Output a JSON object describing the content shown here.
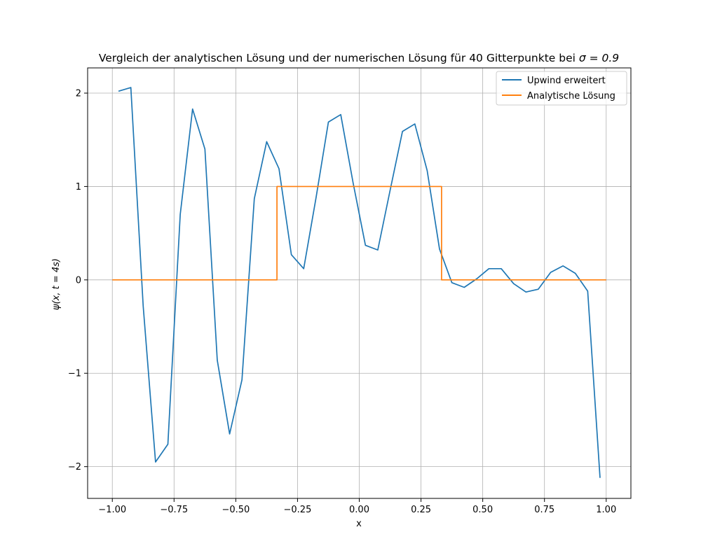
{
  "chart_data": {
    "type": "line",
    "title_text": "Vergleich der analytischen Lösung und der numerischen Lösung für 40 Gitterpunkte bei ",
    "title_math": "σ = 0.9",
    "xlabel": "x",
    "ylabel": "ψ(x, t = 4s)",
    "xlim": [
      -1.1,
      1.1
    ],
    "ylim": [
      -2.34,
      2.27
    ],
    "xticks": [
      -1.0,
      -0.75,
      -0.5,
      -0.25,
      0.0,
      0.25,
      0.5,
      0.75,
      1.0
    ],
    "xtick_labels": [
      "−1.00",
      "−0.75",
      "−0.50",
      "−0.25",
      "0.00",
      "0.25",
      "0.50",
      "0.75",
      "1.00"
    ],
    "yticks": [
      -2,
      -1,
      0,
      1,
      2
    ],
    "ytick_labels": [
      "−2",
      "−1",
      "0",
      "1",
      "2"
    ],
    "grid": true,
    "legend_position": "top-right",
    "series": [
      {
        "name": "Upwind erweitert",
        "color": "#1f77b4",
        "x": [
          -0.975,
          -0.925,
          -0.875,
          -0.825,
          -0.775,
          -0.725,
          -0.675,
          -0.625,
          -0.575,
          -0.525,
          -0.475,
          -0.425,
          -0.375,
          -0.325,
          -0.275,
          -0.225,
          -0.175,
          -0.125,
          -0.075,
          -0.025,
          0.025,
          0.075,
          0.125,
          0.175,
          0.225,
          0.275,
          0.325,
          0.375,
          0.425,
          0.475,
          0.525,
          0.575,
          0.625,
          0.675,
          0.725,
          0.775,
          0.825,
          0.875,
          0.925,
          0.975
        ],
        "y": [
          2.02,
          2.06,
          -0.28,
          -1.95,
          -1.76,
          0.7,
          1.83,
          1.4,
          -0.86,
          -1.65,
          -1.07,
          0.87,
          1.48,
          1.19,
          0.27,
          0.12,
          0.88,
          1.69,
          1.77,
          1.04,
          0.37,
          0.32,
          0.96,
          1.59,
          1.67,
          1.17,
          0.33,
          -0.03,
          -0.08,
          0.01,
          0.12,
          0.12,
          -0.04,
          -0.13,
          -0.1,
          0.08,
          0.15,
          0.07,
          -0.12,
          -2.12
        ]
      },
      {
        "name": "Analytische Lösung",
        "color": "#ff7f0e",
        "x": [
          -1.0,
          -0.3333,
          -0.3333,
          0.3333,
          0.3333,
          1.0
        ],
        "y": [
          0,
          0,
          1,
          1,
          0,
          0
        ]
      }
    ]
  }
}
